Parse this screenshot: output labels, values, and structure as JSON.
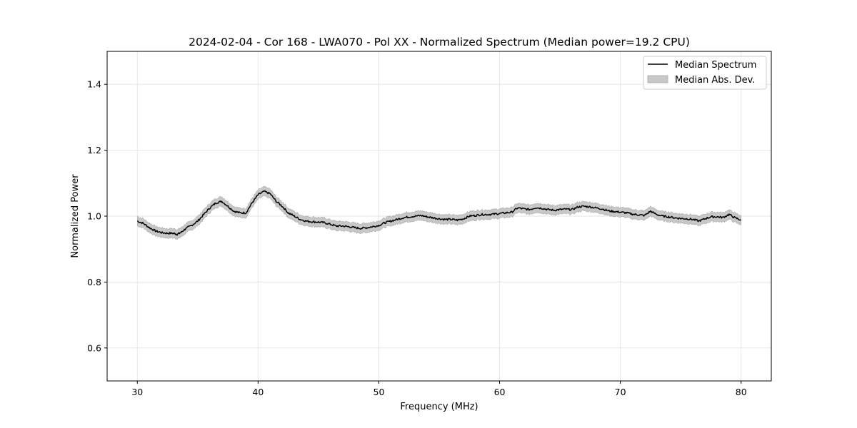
{
  "chart_data": {
    "type": "line",
    "title": "2024-02-04 - Cor 168 - LWA070 - Pol XX - Normalized Spectrum (Median power=19.2 CPU)",
    "xlabel": "Frequency (MHz)",
    "ylabel": "Normalized Power",
    "xlim": [
      27.5,
      82.5
    ],
    "ylim": [
      0.5,
      1.5
    ],
    "xticks": [
      30,
      40,
      50,
      60,
      70,
      80
    ],
    "yticks": [
      0.6,
      0.8,
      1.0,
      1.2,
      1.4
    ],
    "xtick_labels": [
      "30",
      "40",
      "50",
      "60",
      "70",
      "80"
    ],
    "ytick_labels": [
      "0.6",
      "0.8",
      "1.0",
      "1.2",
      "1.4"
    ],
    "grid": true,
    "legend_position": "top-right",
    "legend": {
      "line_label": "Median Spectrum",
      "band_label": "Median Abs. Dev."
    },
    "colors": {
      "line": "#000000",
      "band": "#c8c8c8",
      "band_edge": "#a8a8a8",
      "grid": "#e6e6e6"
    },
    "series": [
      {
        "name": "Median Spectrum",
        "x": [
          30,
          30.5,
          31,
          31.5,
          32,
          32.5,
          33,
          33.3,
          33.6,
          34,
          34.5,
          35,
          35.5,
          36,
          36.5,
          37,
          37.5,
          38,
          38.5,
          39,
          39.5,
          40,
          40.5,
          41,
          41.5,
          42,
          42.5,
          43,
          43.5,
          44,
          44.5,
          45,
          45.5,
          46,
          46.5,
          47,
          47.5,
          48,
          48.5,
          49,
          49.5,
          50,
          50.5,
          51,
          51.5,
          52,
          52.5,
          53,
          53.5,
          54,
          54.5,
          55,
          55.5,
          56,
          56.5,
          57,
          57.5,
          58,
          58.5,
          59,
          59.5,
          60,
          60.5,
          61,
          61.5,
          62,
          62.5,
          63,
          63.5,
          64,
          64.5,
          65,
          65.5,
          66,
          66.5,
          67,
          67.5,
          68,
          68.5,
          69,
          69.5,
          70,
          70.5,
          71,
          71.5,
          72,
          72.5,
          73,
          73.5,
          74,
          74.5,
          75,
          75.5,
          76,
          76.5,
          77,
          77.5,
          78,
          78.5,
          79,
          79.5,
          80
        ],
        "y": [
          0.985,
          0.978,
          0.965,
          0.955,
          0.95,
          0.948,
          0.948,
          0.945,
          0.95,
          0.962,
          0.972,
          0.985,
          1.005,
          1.025,
          1.04,
          1.045,
          1.03,
          1.015,
          1.01,
          1.01,
          1.04,
          1.065,
          1.075,
          1.068,
          1.045,
          1.03,
          1.01,
          1.0,
          0.99,
          0.985,
          0.983,
          0.982,
          0.98,
          0.975,
          0.97,
          0.97,
          0.968,
          0.965,
          0.963,
          0.965,
          0.968,
          0.972,
          0.98,
          0.985,
          0.99,
          0.995,
          0.998,
          1.0,
          1.002,
          0.998,
          0.995,
          0.992,
          0.99,
          0.99,
          0.988,
          0.992,
          1.0,
          1.002,
          1.005,
          1.005,
          1.006,
          1.008,
          1.01,
          1.012,
          1.025,
          1.022,
          1.02,
          1.026,
          1.024,
          1.02,
          1.018,
          1.02,
          1.021,
          1.02,
          1.028,
          1.03,
          1.028,
          1.025,
          1.022,
          1.016,
          1.014,
          1.012,
          1.01,
          1.006,
          1.004,
          1.002,
          1.015,
          1.005,
          1.0,
          0.998,
          0.995,
          0.993,
          0.992,
          0.99,
          0.985,
          0.992,
          0.998,
          0.998,
          0.996,
          1.005,
          0.995,
          0.988
        ]
      }
    ],
    "band_halfwidth": 0.014
  }
}
